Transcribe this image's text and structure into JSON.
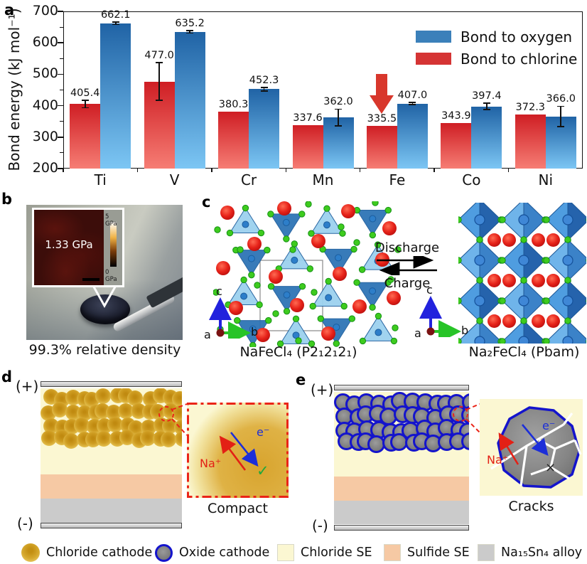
{
  "figure": {
    "panel_labels": {
      "a": "a",
      "b": "b",
      "c": "c",
      "d": "d",
      "e": "e"
    }
  },
  "chart_data": {
    "type": "bar",
    "categories": [
      "Ti",
      "V",
      "Cr",
      "Mn",
      "Fe",
      "Co",
      "Ni"
    ],
    "series": [
      {
        "name": "Bond to chlorine",
        "color_top": "#cf1e24",
        "color_bottom": "#f67d74",
        "values": [
          405.4,
          477.0,
          380.3,
          337.6,
          335.5,
          343.9,
          372.3
        ],
        "errors": [
          12,
          60,
          0,
          0,
          0,
          0,
          0
        ]
      },
      {
        "name": "Bond to oxygen",
        "color_top": "#2063a5",
        "color_bottom": "#7cc6f4",
        "values": [
          662.1,
          635.2,
          452.3,
          362.0,
          407.0,
          397.4,
          366.0
        ],
        "errors": [
          4,
          4,
          6,
          27,
          4,
          10,
          32
        ]
      }
    ],
    "title": "",
    "xlabel": "",
    "ylabel": "Bond energy (kJ mol⁻¹)",
    "ylim": [
      200,
      700
    ],
    "ytick_step": 100,
    "grid": false,
    "legend_position": "top-right",
    "annotation": {
      "type": "down-arrow",
      "category": "Fe",
      "series": "Bond to chlorine",
      "color": "#d8372c"
    }
  },
  "chart": {
    "ylabel": "Bond energy (kJ mol⁻¹)",
    "legend": [
      {
        "label": "Bond to oxygen",
        "color": "#3b80ba"
      },
      {
        "label": "Bond to chlorine",
        "color": "#d53434"
      }
    ]
  },
  "panel_b": {
    "inset_value": "1.33 GPa",
    "scale_top": "5 GPa",
    "scale_bottom": "0 GPa",
    "caption": "99.3% relative density"
  },
  "panel_c": {
    "left_caption": "NaFeCl₄ (P2₁2₁2₁)",
    "right_caption": "Na₂FeCl₄ (Pbam)",
    "discharge": "Discharge",
    "charge": "Charge",
    "axis": {
      "a": "a",
      "b": "b",
      "c": "c"
    }
  },
  "panel_d": {
    "plus": "(+)",
    "minus": "(-)",
    "na_ion": "Na⁺",
    "electron": "e⁻",
    "check": "✓",
    "caption": "Compact"
  },
  "panel_e": {
    "plus": "(+)",
    "minus": "(-)",
    "na_ion": "Na⁺",
    "electron": "e⁻",
    "cross": "×",
    "caption": "Cracks"
  },
  "bottom_legend": [
    {
      "label": "Chloride cathode",
      "swatch": "gold-circle"
    },
    {
      "label": "Oxide cathode",
      "swatch": "ring-circle"
    },
    {
      "label": "Chloride SE",
      "swatch": "pale-yellow-square",
      "color": "#fbf7d2"
    },
    {
      "label": "Sulfide SE",
      "swatch": "salmon-square",
      "color": "#f6c9a4"
    },
    {
      "label": "Na₁₅Sn₄ alloy",
      "swatch": "gray-square",
      "color": "#cbcbcb"
    }
  ],
  "colors": {
    "oxygen_bar": "#3b80ba",
    "chlorine_bar": "#d53434",
    "chloride_se": "#fbf7d2",
    "sulfide_se": "#f6c9a4",
    "alloy": "#cbcbcb",
    "oxide_ring": "#1414cc",
    "highlight_red": "#ea2418"
  }
}
